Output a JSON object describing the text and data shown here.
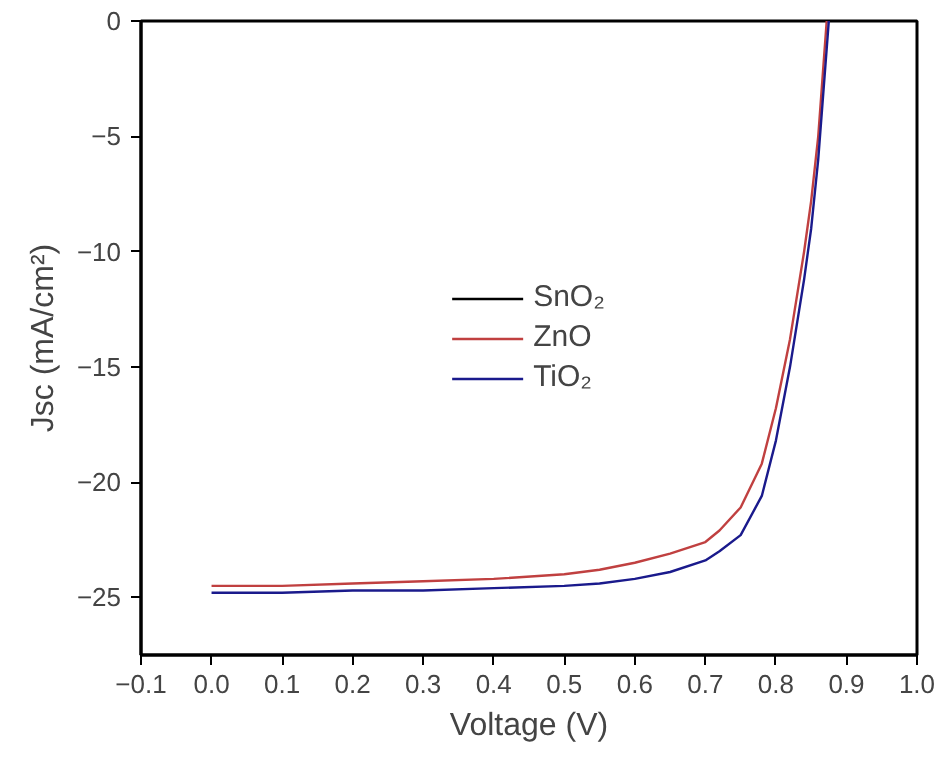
{
  "chart_data": {
    "type": "line",
    "xlabel": "Voltage (V)",
    "ylabel": "Jsc (mA/cm²)",
    "xlim": [
      -0.1,
      1.0
    ],
    "ylim": [
      -27.5,
      0
    ],
    "xticks": [
      -0.1,
      {
        "value": 0,
        "label": "0.0"
      },
      0.1,
      0.2,
      0.3,
      0.4,
      0.5,
      0.6,
      0.7,
      0.8,
      0.9,
      {
        "value": 1,
        "label": "1.0"
      }
    ],
    "yticks": [
      -25,
      -20,
      -15,
      -10,
      -5,
      0
    ],
    "grid": false,
    "legend": "center",
    "marker": "none",
    "line_style": "solid",
    "series": [
      {
        "name": "SnO₂",
        "color": "#000000"
      },
      {
        "name": "ZnO",
        "color": "#c04040",
        "x": [
          0,
          0.1,
          0.2,
          0.3,
          0.4,
          0.5,
          0.55,
          0.6,
          0.65,
          0.7,
          0.72,
          0.75,
          0.78,
          0.8,
          0.82,
          0.84,
          0.85,
          0.86,
          0.872
        ],
        "values": [
          -24.5,
          -24.5,
          -24.4,
          -24.3,
          -24.2,
          -24.0,
          -23.8,
          -23.5,
          -23.1,
          -22.6,
          -22.1,
          -21.1,
          -19.2,
          -16.8,
          -13.8,
          -10,
          -7.8,
          -5,
          0
        ]
      },
      {
        "name": "TiO₂",
        "color": "#1a1a8c",
        "x": [
          0,
          0.1,
          0.2,
          0.3,
          0.4,
          0.5,
          0.55,
          0.6,
          0.65,
          0.7,
          0.72,
          0.75,
          0.78,
          0.8,
          0.82,
          0.84,
          0.85,
          0.86,
          0.875
        ],
        "values": [
          -24.8,
          -24.8,
          -24.7,
          -24.7,
          -24.6,
          -24.5,
          -24.4,
          -24.2,
          -23.9,
          -23.4,
          -23.0,
          -22.3,
          -20.6,
          -18.2,
          -15,
          -11.2,
          -9,
          -6,
          0
        ]
      }
    ]
  }
}
